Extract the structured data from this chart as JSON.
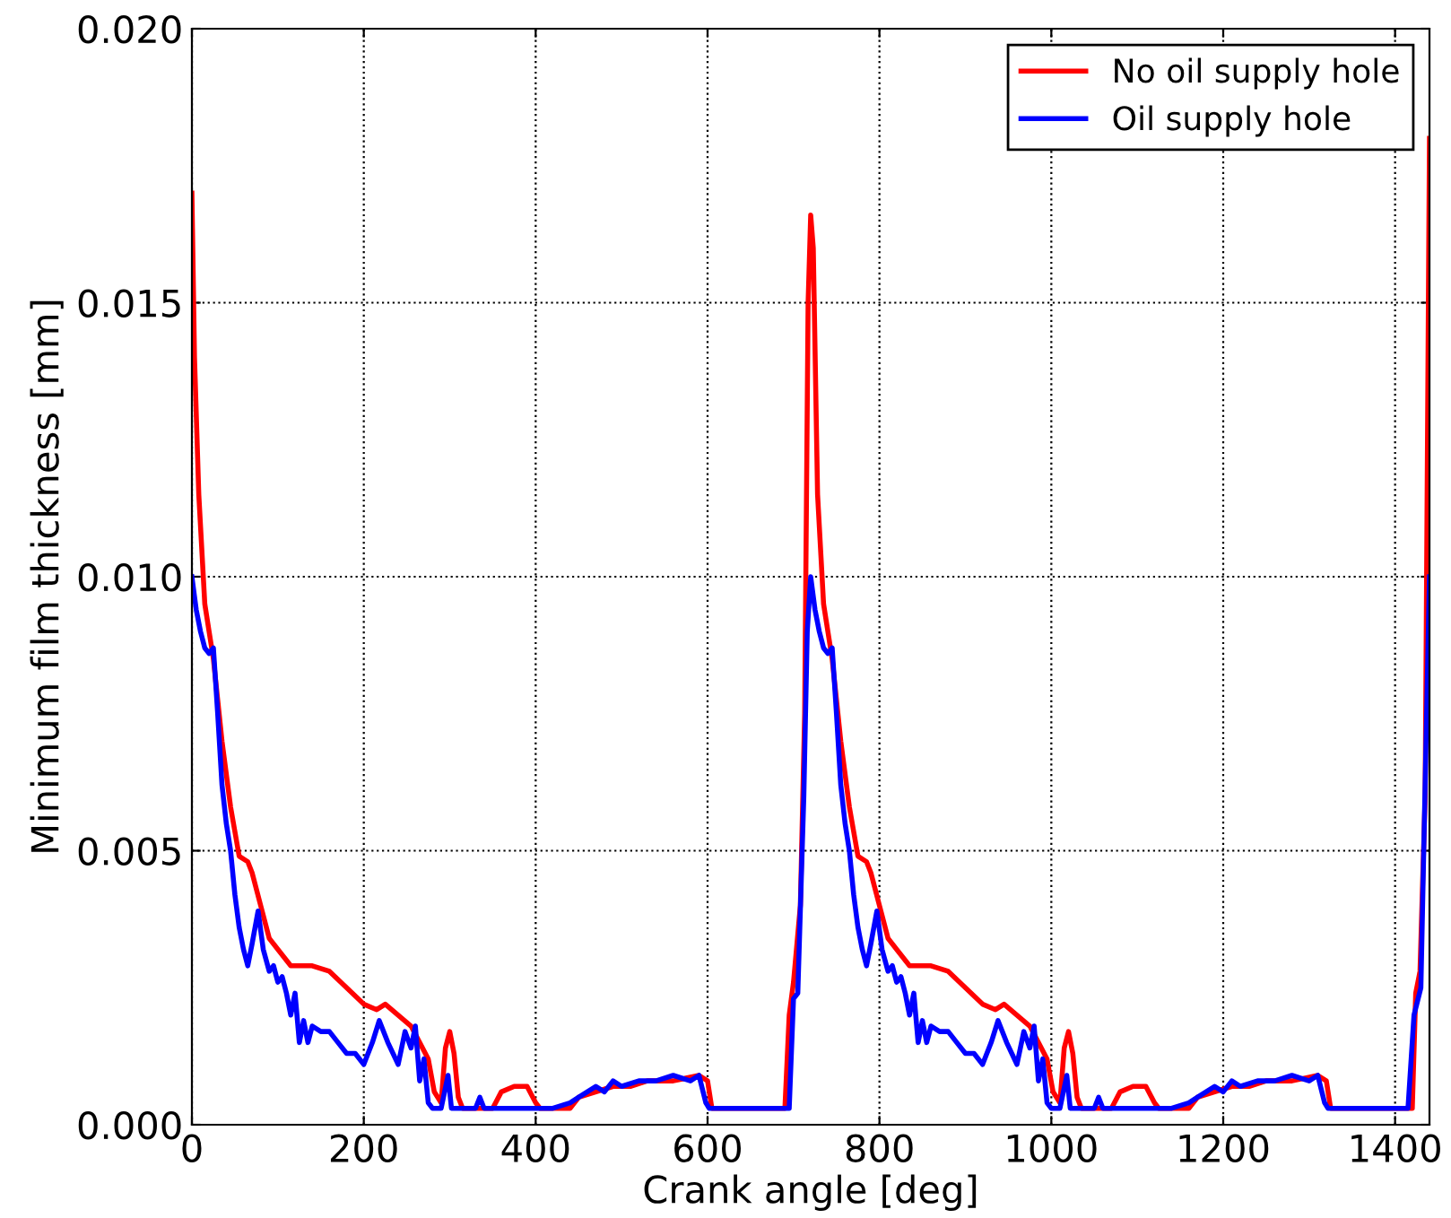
{
  "chart_data": {
    "type": "line",
    "xlabel": "Crank angle [deg]",
    "ylabel": "Minimum film thickness [mm]",
    "xlim": [
      0,
      1440
    ],
    "xticks": [
      0,
      200,
      400,
      600,
      800,
      1000,
      1200,
      1400
    ],
    "ylim": [
      0,
      0.02
    ],
    "yticks": [
      {
        "value": 0,
        "label": "0.000"
      },
      {
        "value": 0.005,
        "label": "0.005"
      },
      {
        "value": 0.01,
        "label": "0.010"
      },
      {
        "value": 0.015,
        "label": "0.015"
      },
      {
        "value": 0.02,
        "label": "0.020"
      }
    ],
    "grid": true,
    "legend": "top right",
    "line_style": "solid",
    "marker": "none",
    "series": [
      {
        "name": "No oil supply hole",
        "color": "#ff0000",
        "x": [
          0,
          3,
          8,
          15,
          20,
          25,
          35,
          45,
          55,
          65,
          70,
          80,
          90,
          100,
          115,
          140,
          160,
          180,
          200,
          215,
          225,
          240,
          255,
          265,
          275,
          282,
          290,
          295,
          300,
          305,
          310,
          315,
          350,
          360,
          375,
          390,
          400,
          405,
          440,
          450,
          470,
          490,
          510,
          530,
          560,
          590,
          600,
          605,
          690,
          695,
          700,
          708,
          713,
          717,
          720,
          723,
          728,
          735,
          740,
          745,
          755,
          765,
          775,
          785,
          790,
          800,
          810,
          820,
          835,
          860,
          880,
          900,
          920,
          935,
          945,
          960,
          975,
          985,
          995,
          1002,
          1010,
          1015,
          1020,
          1025,
          1030,
          1035,
          1070,
          1080,
          1095,
          1110,
          1120,
          1125,
          1160,
          1170,
          1190,
          1210,
          1230,
          1250,
          1280,
          1310,
          1320,
          1325,
          1410,
          1420,
          1424,
          1429,
          1435,
          1440
        ],
        "values": [
          0.017,
          0.014,
          0.0115,
          0.0095,
          0.009,
          0.0085,
          0.007,
          0.0058,
          0.0049,
          0.0048,
          0.0046,
          0.004,
          0.0034,
          0.0032,
          0.0029,
          0.0029,
          0.0028,
          0.0025,
          0.0022,
          0.0021,
          0.0022,
          0.002,
          0.0018,
          0.0015,
          0.0012,
          0.0006,
          0.0004,
          0.0014,
          0.0017,
          0.0013,
          0.0005,
          0.0003,
          0.0003,
          0.0006,
          0.0007,
          0.0007,
          0.0004,
          0.0003,
          0.0003,
          0.0005,
          0.0006,
          0.0007,
          0.0007,
          0.0008,
          0.0008,
          0.0009,
          0.0008,
          0.0003,
          0.0003,
          0.002,
          0.0026,
          0.004,
          0.0075,
          0.015,
          0.0166,
          0.016,
          0.0115,
          0.0095,
          0.009,
          0.0085,
          0.007,
          0.0058,
          0.0049,
          0.0048,
          0.0046,
          0.004,
          0.0034,
          0.0032,
          0.0029,
          0.0029,
          0.0028,
          0.0025,
          0.0022,
          0.0021,
          0.0022,
          0.002,
          0.0018,
          0.0015,
          0.0012,
          0.0006,
          0.0004,
          0.0014,
          0.0017,
          0.0013,
          0.0005,
          0.0003,
          0.0003,
          0.0006,
          0.0007,
          0.0007,
          0.0004,
          0.0003,
          0.0003,
          0.0005,
          0.0006,
          0.0007,
          0.0007,
          0.0008,
          0.0008,
          0.0009,
          0.0008,
          0.0003,
          0.0003,
          0.0003,
          0.0024,
          0.0028,
          0.006,
          0.018
        ]
      },
      {
        "name": "Oil supply hole",
        "color": "#0000ff",
        "x": [
          0,
          5,
          10,
          15,
          20,
          25,
          30,
          35,
          40,
          45,
          50,
          55,
          60,
          65,
          70,
          77,
          83,
          90,
          95,
          100,
          105,
          110,
          115,
          120,
          125,
          130,
          135,
          140,
          150,
          160,
          170,
          180,
          190,
          200,
          210,
          218,
          228,
          240,
          248,
          255,
          260,
          265,
          270,
          275,
          280,
          290,
          298,
          302,
          330,
          335,
          340,
          420,
          440,
          450,
          460,
          470,
          480,
          490,
          500,
          520,
          540,
          560,
          580,
          590,
          598,
          602,
          695,
          700,
          705,
          712,
          716,
          720,
          725,
          730,
          735,
          740,
          745,
          750,
          755,
          760,
          765,
          770,
          775,
          780,
          785,
          790,
          797,
          803,
          810,
          815,
          820,
          825,
          830,
          835,
          840,
          845,
          850,
          855,
          860,
          870,
          880,
          890,
          900,
          910,
          920,
          930,
          938,
          948,
          960,
          968,
          975,
          980,
          985,
          990,
          995,
          1000,
          1010,
          1018,
          1022,
          1050,
          1055,
          1060,
          1140,
          1160,
          1170,
          1180,
          1190,
          1200,
          1210,
          1220,
          1240,
          1260,
          1280,
          1300,
          1310,
          1318,
          1322,
          1415,
          1422,
          1430,
          1440
        ],
        "values": [
          0.01,
          0.0094,
          0.009,
          0.0087,
          0.0086,
          0.0087,
          0.0075,
          0.0062,
          0.0055,
          0.005,
          0.0042,
          0.0036,
          0.0032,
          0.0029,
          0.0033,
          0.0039,
          0.0032,
          0.0028,
          0.0029,
          0.0026,
          0.0027,
          0.0024,
          0.002,
          0.0024,
          0.0015,
          0.0019,
          0.0015,
          0.0018,
          0.0017,
          0.0017,
          0.0015,
          0.0013,
          0.0013,
          0.0011,
          0.0015,
          0.0019,
          0.0015,
          0.0011,
          0.0017,
          0.0014,
          0.0018,
          0.0008,
          0.0012,
          0.0004,
          0.0003,
          0.0003,
          0.0009,
          0.0003,
          0.0003,
          0.0005,
          0.0003,
          0.0003,
          0.0004,
          0.0005,
          0.0006,
          0.0007,
          0.0006,
          0.0008,
          0.0007,
          0.0008,
          0.0008,
          0.0009,
          0.0008,
          0.0009,
          0.0004,
          0.0003,
          0.0003,
          0.0023,
          0.0024,
          0.006,
          0.009,
          0.01,
          0.0094,
          0.009,
          0.0087,
          0.0086,
          0.0087,
          0.0075,
          0.0062,
          0.0055,
          0.005,
          0.0042,
          0.0036,
          0.0032,
          0.0029,
          0.0033,
          0.0039,
          0.0032,
          0.0028,
          0.0029,
          0.0026,
          0.0027,
          0.0024,
          0.002,
          0.0024,
          0.0015,
          0.0019,
          0.0015,
          0.0018,
          0.0017,
          0.0017,
          0.0015,
          0.0013,
          0.0013,
          0.0011,
          0.0015,
          0.0019,
          0.0015,
          0.0011,
          0.0017,
          0.0014,
          0.0018,
          0.0008,
          0.0012,
          0.0004,
          0.0003,
          0.0003,
          0.0009,
          0.0003,
          0.0003,
          0.0005,
          0.0003,
          0.0003,
          0.0004,
          0.0005,
          0.0006,
          0.0007,
          0.0006,
          0.0008,
          0.0007,
          0.0008,
          0.0008,
          0.0009,
          0.0008,
          0.0009,
          0.0004,
          0.0003,
          0.0003,
          0.002,
          0.0025,
          0.01
        ]
      }
    ]
  }
}
